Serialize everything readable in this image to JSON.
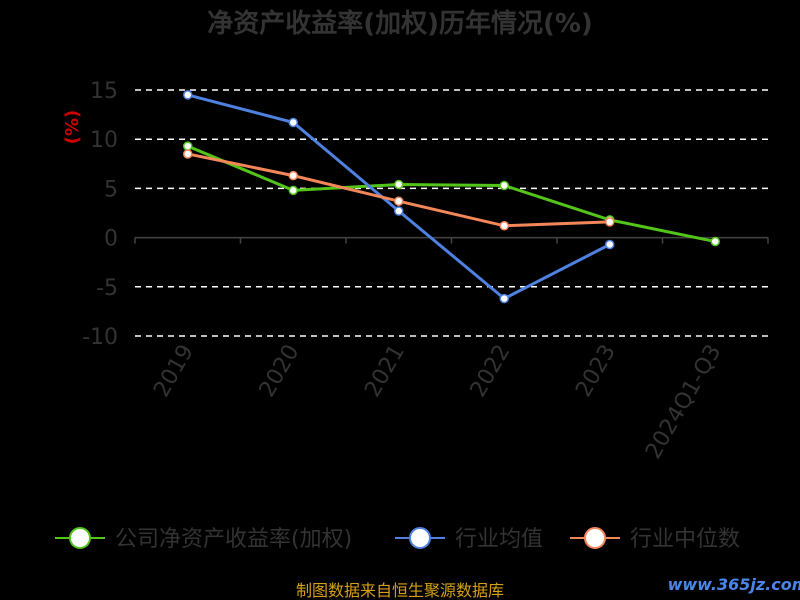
{
  "chart_data": {
    "type": "line",
    "title": "净资产收益率(加权)历年情况(%)",
    "ylabel": "(%)",
    "categories": [
      "2019",
      "2020",
      "2021",
      "2022",
      "2023",
      "2024Q1-Q3"
    ],
    "ylim": [
      -10,
      15
    ],
    "yticks": [
      15,
      10,
      5,
      0,
      -5,
      -10
    ],
    "grid": true,
    "legend_position": "bottom",
    "series": [
      {
        "name": "公司净资产收益率(加权)",
        "color": "#52c41a",
        "values": [
          9.3,
          4.8,
          5.4,
          5.3,
          1.8,
          -0.4
        ]
      },
      {
        "name": "行业均值",
        "color": "#4f81e0",
        "values": [
          14.5,
          11.7,
          2.7,
          -6.2,
          -0.7,
          null
        ]
      },
      {
        "name": "行业中位数",
        "color": "#f4875a",
        "values": [
          8.5,
          6.3,
          3.7,
          1.2,
          1.6,
          null
        ]
      }
    ]
  },
  "footer": "制图数据来自恒生聚源数据库",
  "watermark": "www.365jz.com"
}
